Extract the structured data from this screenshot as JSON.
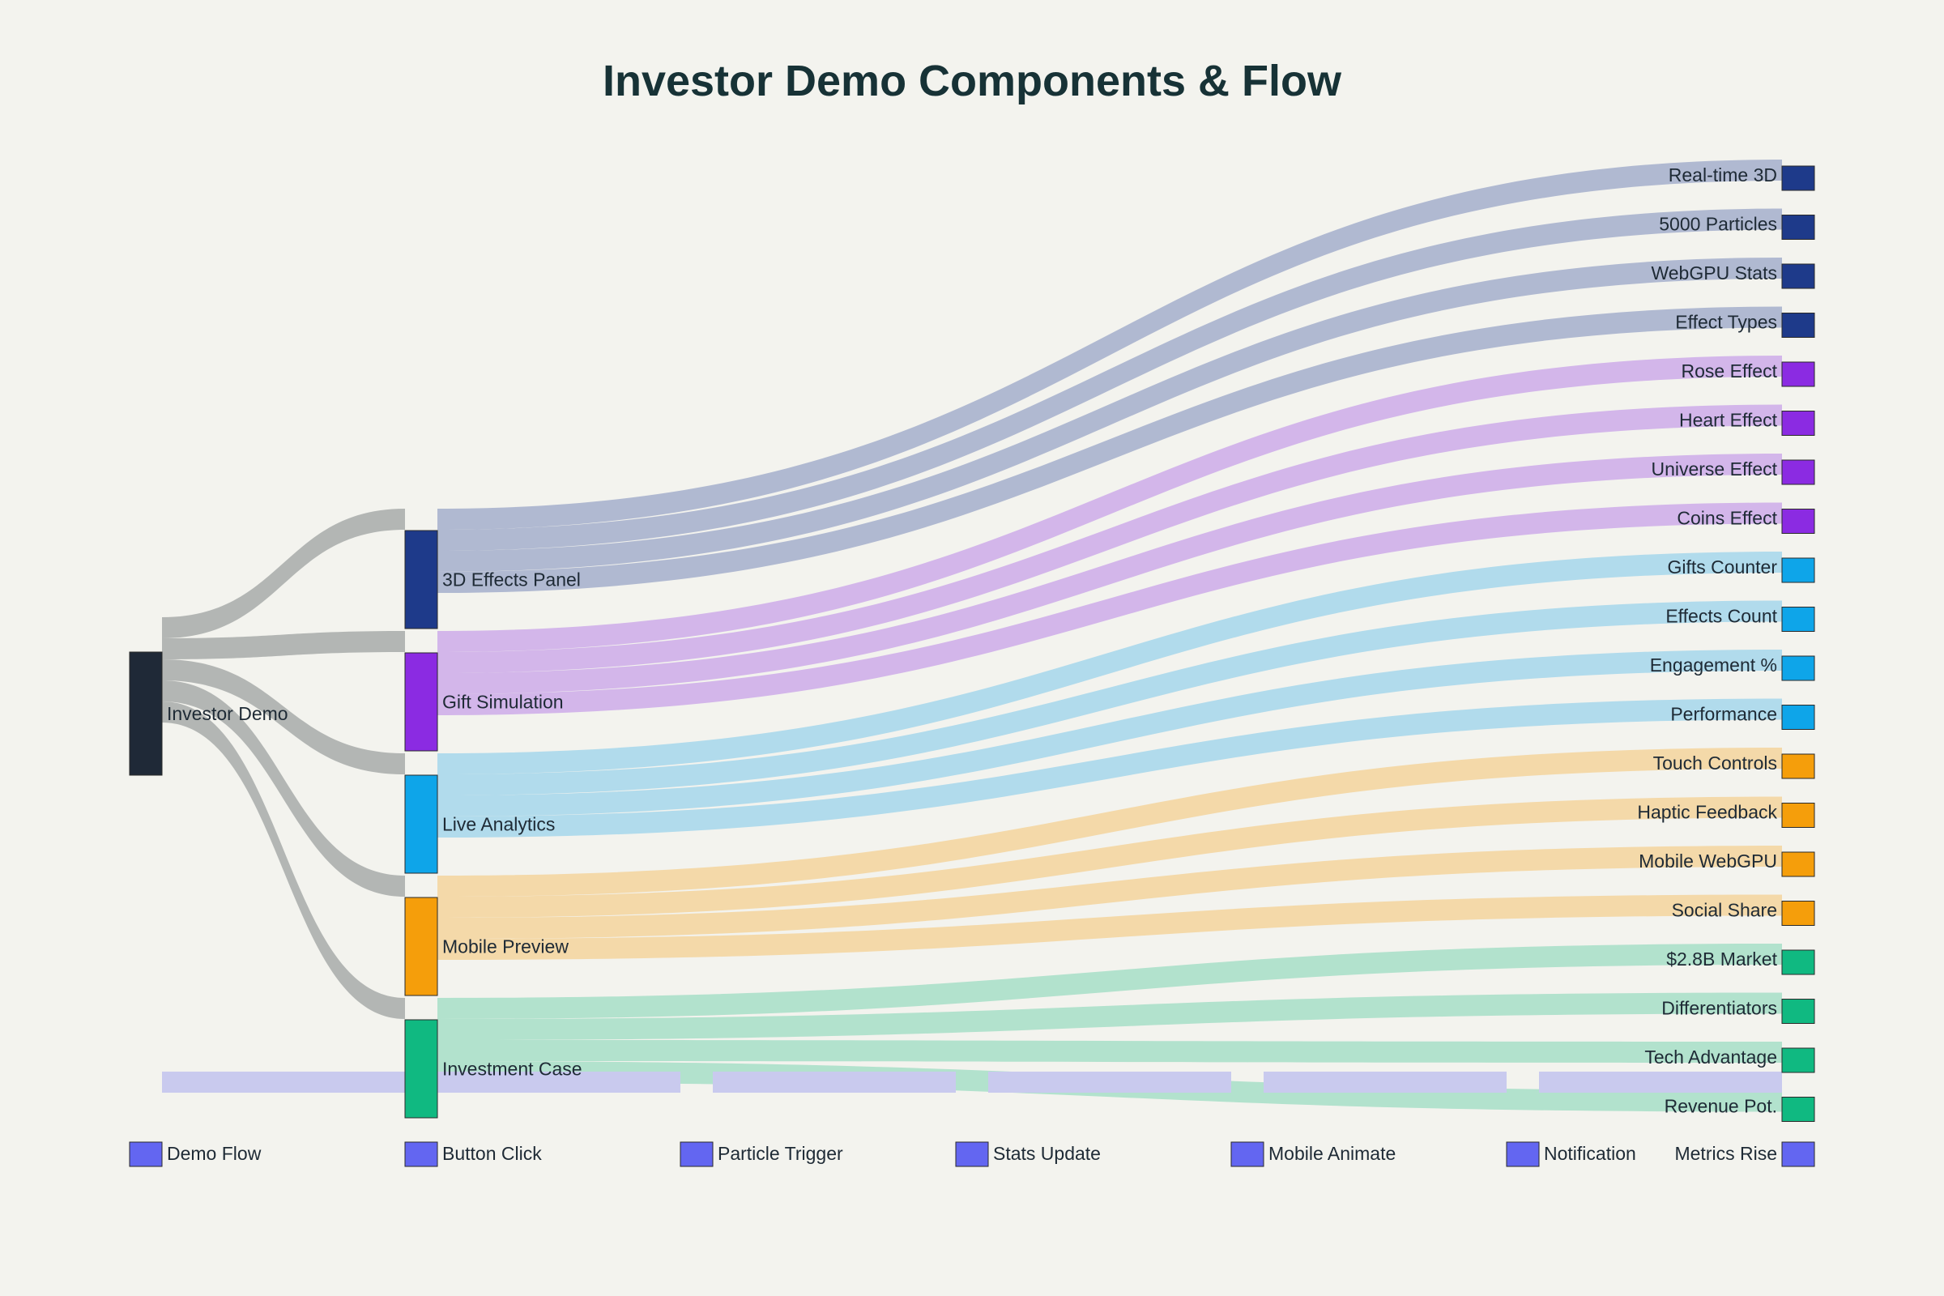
{
  "title": "Investor Demo Components & Flow",
  "colors": {
    "background": "#f3f3ee",
    "root": "#1f2937",
    "flow_grey": "#b3b6b4",
    "blue_dark": "#1e3a8a",
    "purple": "#8b2be2",
    "sky": "#0ea5e9",
    "orange": "#f59e0b",
    "green": "#10b981",
    "indigo": "#6366f1"
  },
  "diagram": {
    "root": {
      "name": "Investor Demo",
      "color": "#1f2937"
    },
    "components": [
      {
        "name": "3D Effects Panel",
        "color": "#1e3a8a",
        "link": "#b0b9d1",
        "features": [
          {
            "name": "Real-time 3D"
          },
          {
            "name": "5000 Particles"
          },
          {
            "name": "WebGPU Stats"
          },
          {
            "name": "Effect Types"
          }
        ]
      },
      {
        "name": "Gift Simulation",
        "color": "#8b2be2",
        "link": "#d3b6ea",
        "features": [
          {
            "name": "Rose Effect"
          },
          {
            "name": "Heart Effect"
          },
          {
            "name": "Universe Effect"
          },
          {
            "name": "Coins Effect"
          }
        ]
      },
      {
        "name": "Live Analytics",
        "color": "#0ea5e9",
        "link": "#b1dbec",
        "features": [
          {
            "name": "Gifts Counter"
          },
          {
            "name": "Effects Count"
          },
          {
            "name": "Engagement %"
          },
          {
            "name": "Performance"
          }
        ]
      },
      {
        "name": "Mobile Preview",
        "color": "#f59e0b",
        "link": "#f4d9a9",
        "features": [
          {
            "name": "Touch Controls"
          },
          {
            "name": "Haptic Feedback"
          },
          {
            "name": "Mobile WebGPU"
          },
          {
            "name": "Social Share"
          }
        ]
      },
      {
        "name": "Investment Case",
        "color": "#10b981",
        "link": "#b2e2cd",
        "features": [
          {
            "name": "$2.8B Market"
          },
          {
            "name": "Differentiators"
          },
          {
            "name": "Tech Advantage"
          },
          {
            "name": "Revenue Pot."
          }
        ]
      }
    ],
    "demo_flow": {
      "color": "#6366f1",
      "link": "#c9caee",
      "steps": [
        "Demo Flow",
        "Button Click",
        "Particle Trigger",
        "Stats Update",
        "Mobile Animate",
        "Notification",
        "Metrics Rise"
      ]
    }
  }
}
